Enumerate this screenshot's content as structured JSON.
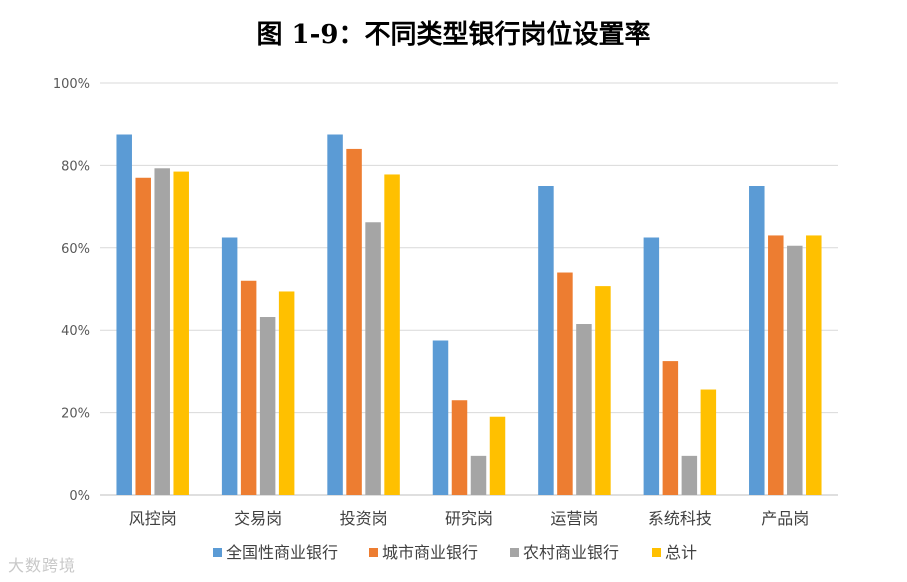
{
  "chart_data": {
    "type": "bar",
    "title": "图 1-9：不同类型银行岗位设置率",
    "categories": [
      "风控岗",
      "交易岗",
      "投资岗",
      "研究岗",
      "运营岗",
      "系统科技",
      "产品岗"
    ],
    "series": [
      {
        "name": "全国性商业银行",
        "color": "#5b9bd5",
        "values": [
          87.5,
          62.5,
          87.5,
          37.5,
          75.0,
          62.5,
          75.0
        ]
      },
      {
        "name": "城市商业银行",
        "color": "#ed7d31",
        "values": [
          77.0,
          52.0,
          84.0,
          23.0,
          54.0,
          32.5,
          63.0
        ]
      },
      {
        "name": "农村商业银行",
        "color": "#a5a5a5",
        "values": [
          79.3,
          43.2,
          66.2,
          9.5,
          41.5,
          9.5,
          60.5
        ]
      },
      {
        "name": "总计",
        "color": "#ffc000",
        "values": [
          78.5,
          49.4,
          77.8,
          19.0,
          50.7,
          25.6,
          63.0
        ]
      }
    ],
    "ylim": [
      0,
      100
    ],
    "yticks": [
      "0%",
      "20%",
      "40%",
      "60%",
      "80%",
      "100%"
    ],
    "grid": true,
    "legend_position": "bottom"
  },
  "watermark": "大数跨境"
}
